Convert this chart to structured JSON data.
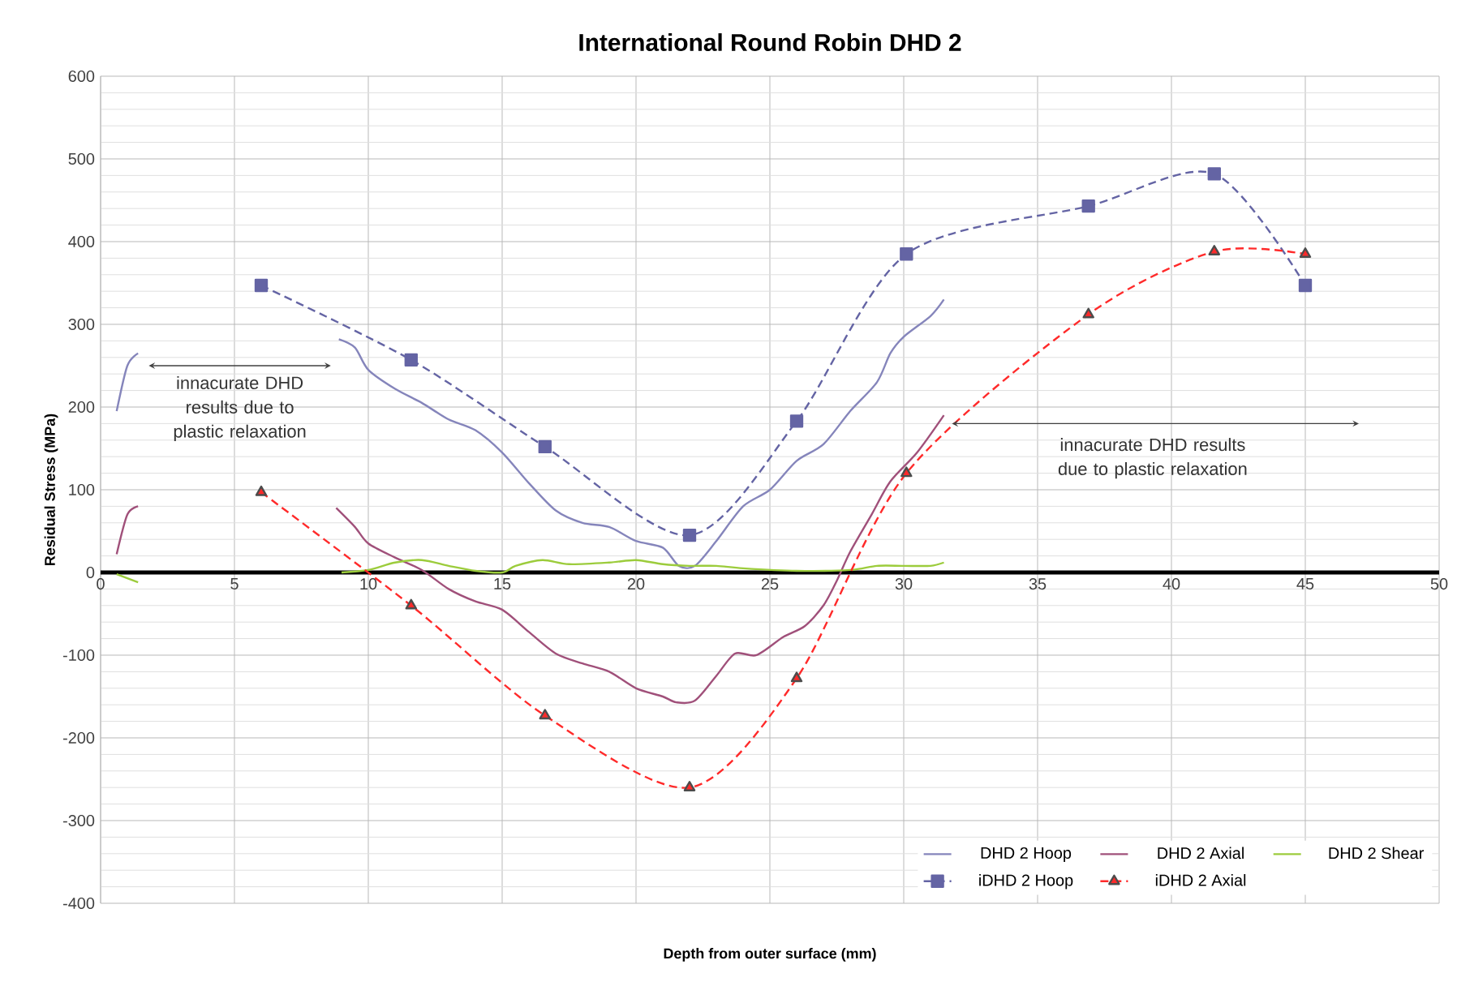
{
  "chart_data": {
    "type": "line",
    "title": "International Round Robin DHD 2",
    "xlabel": "Depth from outer surface (mm)",
    "ylabel": "Residual Stress (MPa)",
    "xlim": [
      0,
      50
    ],
    "xticks": [
      0,
      5,
      10,
      15,
      20,
      25,
      30,
      35,
      40,
      45,
      50
    ],
    "ylim": [
      -400,
      600
    ],
    "yticks": [
      -400,
      -300,
      -200,
      -100,
      0,
      100,
      200,
      300,
      400,
      500,
      600
    ],
    "grid": true,
    "legend": "bottom right",
    "annotations": [
      "innacurate DHD results due to plastic relaxation",
      "innacurate DHD results due to plastic relaxation"
    ],
    "series": [
      {
        "name": "DHD 2 Hoop",
        "color": "#8585bb",
        "marker": "none",
        "line_style": "solid",
        "x": [
          0.6,
          1.0,
          1.4,
          5,
          8.9,
          9.5,
          10,
          11,
          12,
          13,
          14,
          15,
          16,
          17,
          18,
          19,
          20,
          21,
          21.6,
          22.2,
          23,
          24,
          25,
          26,
          27,
          28,
          29,
          29.5,
          30,
          31,
          31.5
        ],
        "values": [
          195,
          250,
          265,
          null,
          282,
          272,
          245,
          222,
          205,
          185,
          172,
          145,
          108,
          75,
          60,
          55,
          38,
          30,
          8,
          8,
          38,
          80,
          100,
          135,
          155,
          195,
          230,
          265,
          285,
          310,
          330
        ]
      },
      {
        "name": "DHD 2 Axial",
        "color": "#a0507a",
        "marker": "none",
        "line_style": "solid",
        "x": [
          0.6,
          1.0,
          1.4,
          5,
          8.8,
          9.5,
          10,
          11,
          12,
          13,
          14,
          15,
          16,
          17,
          18,
          19,
          20,
          21,
          21.5,
          22.2,
          23,
          23.7,
          24.5,
          25.5,
          26.3,
          27,
          27.5,
          28,
          28.8,
          29.5,
          30.5,
          31.5
        ],
        "values": [
          22,
          70,
          80,
          null,
          78,
          55,
          35,
          18,
          3,
          -20,
          -35,
          -45,
          -72,
          -98,
          -110,
          -120,
          -140,
          -150,
          -157,
          -155,
          -125,
          -98,
          -100,
          -78,
          -65,
          -40,
          -10,
          25,
          70,
          110,
          145,
          190
        ]
      },
      {
        "name": "DHD 2 Shear",
        "color": "#9ccc3c",
        "marker": "none",
        "line_style": "solid",
        "x": [
          0.6,
          1.4,
          5,
          9,
          10,
          11,
          12,
          13,
          14,
          15,
          15.5,
          16.5,
          17.5,
          19,
          20,
          21,
          22,
          23,
          24,
          26,
          28,
          29,
          30,
          31,
          31.5
        ],
        "values": [
          -2,
          -12,
          null,
          0,
          3,
          12,
          15,
          8,
          2,
          0,
          8,
          15,
          10,
          12,
          15,
          10,
          8,
          8,
          5,
          2,
          3,
          8,
          8,
          8,
          12
        ]
      },
      {
        "name": "iDHD 2 Hoop",
        "color": "#6464a4",
        "marker": "square",
        "line_style": "dashed",
        "x": [
          6,
          11.6,
          16.6,
          22,
          26,
          30.1,
          36.9,
          41.6,
          45
        ],
        "values": [
          347,
          257,
          152,
          45,
          183,
          385,
          443,
          482,
          347
        ]
      },
      {
        "name": "iDHD 2 Axial",
        "color": "#ff2a2a",
        "marker": "triangle",
        "line_style": "dashed",
        "x": [
          6,
          11.6,
          16.6,
          22,
          26,
          30.1,
          36.9,
          41.6,
          45
        ],
        "values": [
          97,
          -40,
          -173,
          -260,
          -128,
          120,
          312,
          388,
          385
        ]
      }
    ]
  }
}
